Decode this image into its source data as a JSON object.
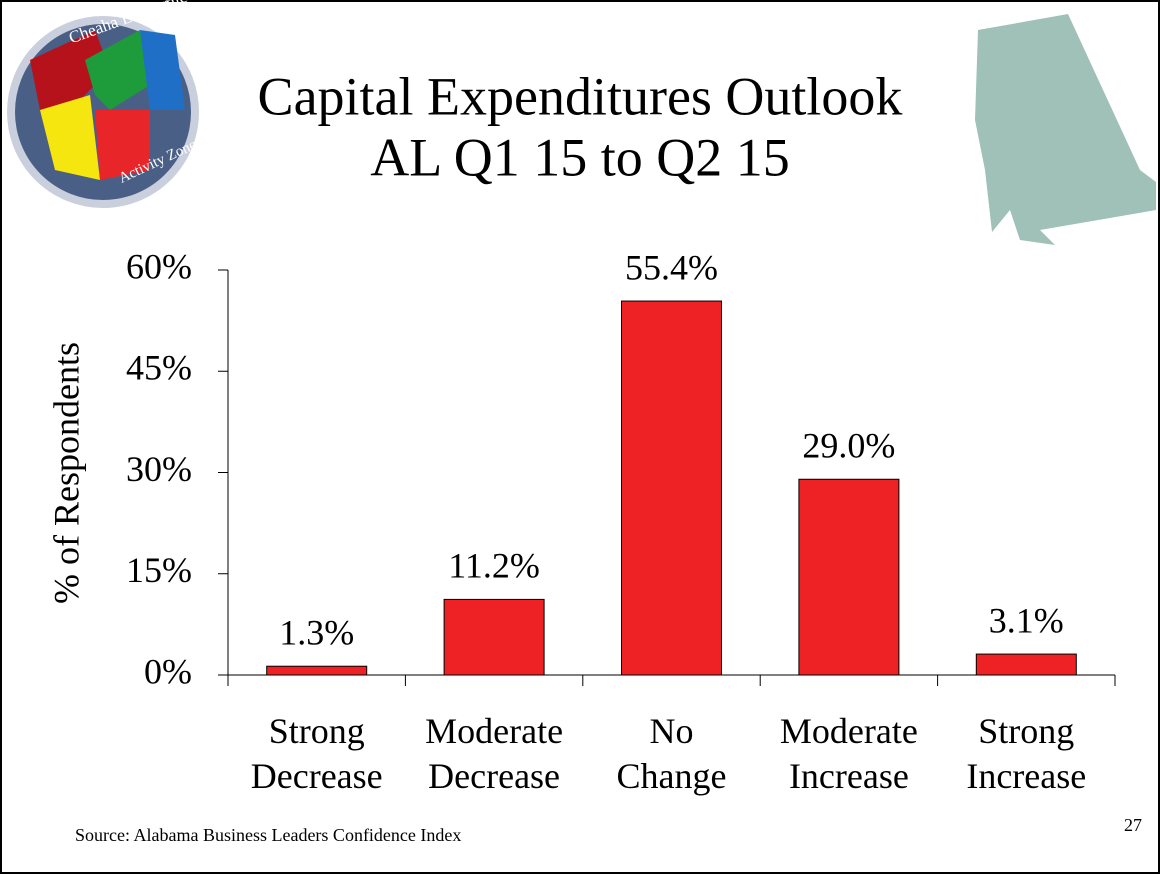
{
  "logo_text": [
    "Cheaha Economic",
    "Activity Zone"
  ],
  "page_number": "27",
  "source": "Source: Alabama Business Leaders Confidence Index",
  "chart_data": {
    "type": "bar",
    "title": "Capital Expenditures Outlook",
    "subtitle": "AL Q1 15 to Q2 15",
    "y_label": "% of Respondents",
    "categories": [
      "Strong Decrease",
      "Moderate Decrease",
      "No Change",
      "Moderate Increase",
      "Strong Increase"
    ],
    "values": [
      1.3,
      11.2,
      55.4,
      29.0,
      3.1
    ],
    "value_labels": [
      "1.3%",
      "11.2%",
      "55.4%",
      "29.0%",
      "3.1%"
    ],
    "color": "#ee2224",
    "ylim": [
      0,
      60
    ],
    "yticks": [
      {
        "value": 0,
        "label": "0%"
      },
      {
        "value": 15,
        "label": "15%"
      },
      {
        "value": 30,
        "label": "30%"
      },
      {
        "value": 45,
        "label": "45%"
      },
      {
        "value": 60,
        "label": "60%"
      }
    ],
    "grid": false
  }
}
